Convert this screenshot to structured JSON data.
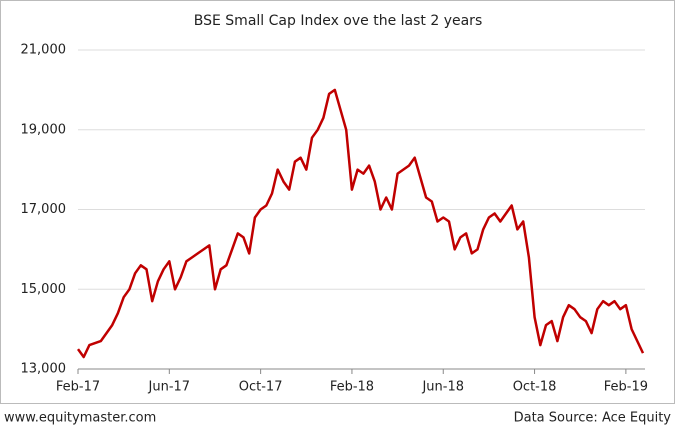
{
  "chart_data": {
    "type": "line",
    "title": "BSE Small Cap Index ove the last 2 years",
    "categories": [
      "Feb-17",
      null,
      null,
      null,
      null,
      null,
      null,
      null,
      null,
      null,
      null,
      null,
      null,
      null,
      null,
      null,
      "Jun-17",
      null,
      null,
      null,
      null,
      null,
      null,
      null,
      null,
      null,
      null,
      null,
      null,
      null,
      null,
      null,
      "Oct-17",
      null,
      null,
      null,
      null,
      null,
      null,
      null,
      null,
      null,
      null,
      null,
      null,
      null,
      null,
      null,
      "Feb-18",
      null,
      null,
      null,
      null,
      null,
      null,
      null,
      null,
      null,
      null,
      null,
      null,
      null,
      null,
      null,
      "Jun-18",
      null,
      null,
      null,
      null,
      null,
      null,
      null,
      null,
      null,
      null,
      null,
      null,
      null,
      null,
      null,
      "Oct-18",
      null,
      null,
      null,
      null,
      null,
      null,
      null,
      null,
      null,
      null,
      null,
      null,
      null,
      null,
      null,
      "Feb-19",
      null,
      null,
      null
    ],
    "values": [
      13500,
      13300,
      13600,
      13650,
      13700,
      13900,
      14100,
      14400,
      14800,
      15000,
      15400,
      15600,
      15500,
      14700,
      15200,
      15500,
      15700,
      15000,
      15300,
      15700,
      15800,
      15900,
      16000,
      16100,
      15000,
      15500,
      15600,
      16000,
      16400,
      16300,
      15900,
      16800,
      17000,
      17100,
      17400,
      18000,
      17700,
      17500,
      18200,
      18300,
      18000,
      18800,
      19000,
      19300,
      19900,
      20000,
      19500,
      19000,
      17500,
      18000,
      17900,
      18100,
      17700,
      17000,
      17300,
      17000,
      17900,
      18000,
      18100,
      18300,
      17800,
      17300,
      17200,
      16700,
      16800,
      16700,
      16000,
      16300,
      16400,
      15900,
      16000,
      16500,
      16800,
      16900,
      16700,
      16900,
      17100,
      16500,
      16700,
      15800,
      14300,
      13600,
      14100,
      14200,
      13700,
      14300,
      14600,
      14500,
      14300,
      14200,
      13900,
      14500,
      14700,
      14600,
      14700,
      14500,
      14600,
      14000,
      13700,
      13400
    ],
    "color": "#c00000",
    "ylim": [
      13000,
      21000
    ],
    "yticks": [
      {
        "value": 13000,
        "label": "13,000"
      },
      {
        "value": 15000,
        "label": "15,000"
      },
      {
        "value": 17000,
        "label": "17,000"
      },
      {
        "value": 19000,
        "label": "19,000"
      },
      {
        "value": 21000,
        "label": "21,000"
      }
    ],
    "grid": true,
    "website": "www.equitymaster.com",
    "source": "Data Source: Ace Equity"
  }
}
